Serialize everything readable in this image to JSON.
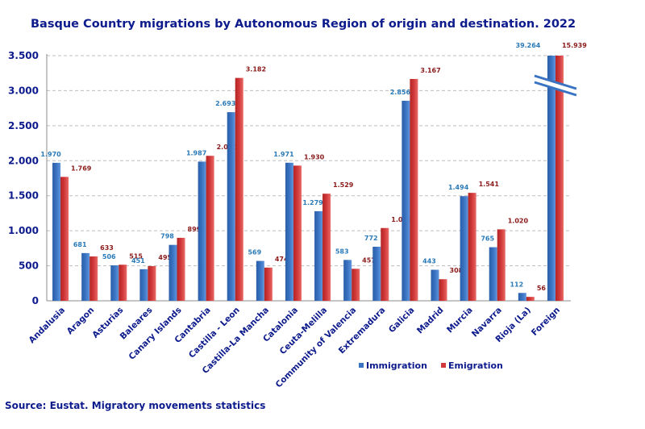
{
  "title": "Basque Country migrations by Autonomous Region of origin and destination. 2022",
  "source": "Source: Eustat. Migratory movements statistics",
  "colors": {
    "immigration": "#3a73c2",
    "emigration": "#d2393a",
    "text": "#0d1b8c"
  },
  "chart_data": {
    "type": "bar",
    "title": "Basque Country migrations by Autonomous Region of origin and destination. 2022",
    "categories": [
      "Andalusia",
      "Aragon",
      "Asturias",
      "Baleares",
      "Canary Islands",
      "Cantabria",
      "Castilla - Leon",
      "Castilla-La Mancha",
      "Catalonia",
      "Ceuta-Melilla",
      "Community of Valencia",
      "Extremadura",
      "Galicia",
      "Madrid",
      "Murcia",
      "Navarra",
      "Rioja (La)",
      "Foreign"
    ],
    "series": [
      {
        "name": "Immigration",
        "values": [
          1970,
          681,
          506,
          451,
          798,
          1987,
          2693,
          569,
          1971,
          1279,
          583,
          772,
          2856,
          443,
          1494,
          765,
          112,
          39264
        ],
        "labels": [
          "1.970",
          "681",
          "506",
          "451",
          "798",
          "1.987",
          "2.693",
          "569",
          "1.971",
          "1.279",
          "583",
          "772",
          "2.856",
          "443",
          "1.494",
          "765",
          "112",
          "39.264"
        ]
      },
      {
        "name": "Emigration",
        "values": [
          1769,
          633,
          515,
          495,
          899,
          2070,
          3182,
          474,
          1930,
          1529,
          457,
          1039,
          3167,
          308,
          1541,
          1020,
          56,
          15939
        ],
        "labels": [
          "1.769",
          "633",
          "515",
          "495",
          "899",
          "2.070",
          "3.182",
          "474",
          "1.930",
          "1.529",
          "457",
          "1.039",
          "3.167",
          "308",
          "1.541",
          "1.020",
          "56",
          "15.939"
        ]
      }
    ],
    "ylim": [
      0,
      3500
    ],
    "yticks": [
      0,
      500,
      1000,
      1500,
      2000,
      2500,
      3000,
      3500
    ],
    "ytick_labels": [
      "0",
      "500",
      "1.000",
      "1.500",
      "2.000",
      "2.500",
      "3.000",
      "3.500"
    ],
    "axis_break": "Foreign",
    "grid": true,
    "legend": "bottom-right"
  }
}
